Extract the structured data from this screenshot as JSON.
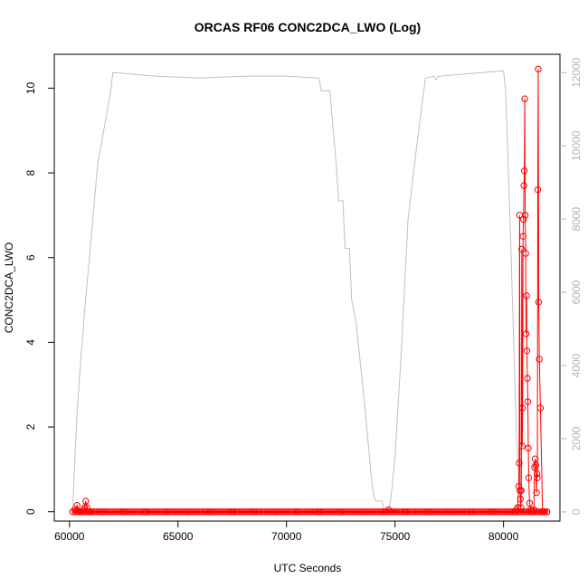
{
  "chart_data": {
    "type": "line",
    "title": "ORCAS RF06 CONC2DCA_LWO (Log)",
    "xlabel": "UTC Seconds",
    "ylabel": "CONC2DCA_LWO",
    "xlim": [
      59300,
      82600
    ],
    "ylim": [
      -0.22,
      10.8
    ],
    "ylim_right": [
      -250,
      12500
    ],
    "x_ticks": [
      60000,
      65000,
      70000,
      75000,
      80000
    ],
    "y_ticks": [
      0,
      2,
      4,
      6,
      8,
      10
    ],
    "y_ticks_right": [
      0,
      2000,
      4000,
      6000,
      8000,
      10000,
      12000
    ],
    "grid": false,
    "legend": "none",
    "colors": {
      "series": "#ff0000",
      "altitude": "#c0c0c0",
      "right_axis_text": "#b3b3b3"
    },
    "series": [
      {
        "axis": "right",
        "color": "#c0c0c0",
        "x": [
          60150,
          60250,
          60350,
          60500,
          60700,
          61000,
          61300,
          61600,
          61900,
          62000,
          64000,
          66000,
          68000,
          70000,
          71500,
          71600,
          71700,
          72000,
          72300,
          72400,
          72600,
          72700,
          72900,
          73000,
          73200,
          73500,
          73700,
          73900,
          74000,
          74100,
          74400,
          74500,
          74600,
          74700,
          74800,
          75000,
          75300,
          75600,
          76000,
          76400,
          76800,
          76900,
          77000,
          79000,
          80000,
          80100,
          80300,
          80600,
          80800,
          81200,
          81800,
          82100
        ],
        "y": [
          50,
          1500,
          2700,
          4000,
          5500,
          7500,
          9500,
          10500,
          11500,
          12000,
          11900,
          11850,
          11900,
          11900,
          11850,
          11500,
          11500,
          11500,
          9400,
          8500,
          8500,
          7200,
          7200,
          5800,
          5200,
          3500,
          2300,
          1000,
          500,
          300,
          300,
          50,
          30,
          50,
          300,
          1500,
          4500,
          8000,
          10000,
          11850,
          11900,
          11800,
          11900,
          12000,
          12050,
          11500,
          8000,
          2000,
          100,
          50,
          50,
          50
        ]
      },
      {
        "axis": "left",
        "color": "#ff0000",
        "marker": "circle",
        "x": [
          60150,
          60250,
          60350,
          60450,
          60550,
          60650,
          60700,
          60750,
          60800,
          60850,
          60950,
          61500,
          62500,
          63500,
          64500,
          65500,
          66500,
          67500,
          68500,
          69500,
          70500,
          71500,
          72500,
          73500,
          74500,
          74700,
          75500,
          76500,
          77500,
          78500,
          79500,
          80300,
          80500,
          80600,
          80650,
          80700,
          80720,
          80740,
          80760,
          80780,
          80800,
          80820,
          80840,
          80860,
          80880,
          80900,
          80920,
          80940,
          80960,
          80980,
          81000,
          81020,
          81040,
          81060,
          81080,
          81100,
          81120,
          81140,
          81160,
          81200,
          81250,
          81300,
          81350,
          81400,
          81430,
          81460,
          81490,
          81520,
          81540,
          81560,
          81580,
          81600,
          81620,
          81650,
          81700,
          81800,
          81900,
          82000
        ],
        "y": [
          0,
          0.05,
          0.15,
          0,
          0,
          0.05,
          0.1,
          0.25,
          0.1,
          0,
          0,
          0,
          0,
          0,
          0,
          0,
          0,
          0,
          0,
          0,
          0,
          0,
          0,
          0,
          0,
          0.05,
          0,
          0,
          0,
          0,
          0,
          0,
          0,
          0.05,
          0.1,
          0.6,
          1.15,
          7.0,
          0.5,
          0.3,
          0.1,
          0.5,
          6.2,
          1.55,
          2.45,
          6.5,
          6.9,
          7.7,
          8.05,
          9.75,
          7.0,
          6.1,
          4.2,
          5.1,
          3.8,
          3.15,
          2.6,
          1.5,
          0.8,
          0.2,
          0.05,
          0,
          0,
          0.05,
          1.05,
          1.25,
          1.1,
          0.45,
          0.9,
          0.8,
          7.6,
          10.45,
          4.95,
          3.6,
          2.45,
          0,
          0,
          0
        ],
        "baseline_dense": true
      }
    ]
  }
}
